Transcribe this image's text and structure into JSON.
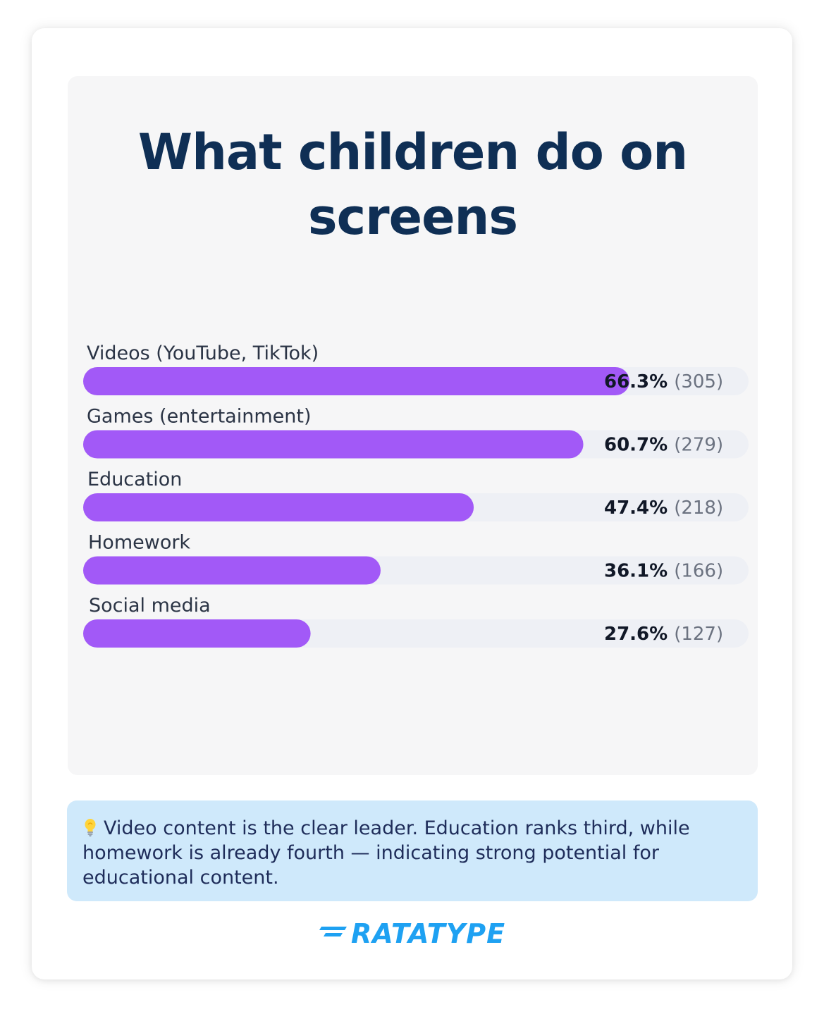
{
  "title": "What children do on screens",
  "chart_data": {
    "type": "bar",
    "orientation": "horizontal",
    "title": "What children do on screens",
    "categories": [
      "Videos (YouTube, TikTok)",
      "Games (entertainment)",
      "Education",
      "Homework",
      "Social media"
    ],
    "values": [
      66.3,
      60.7,
      47.4,
      36.1,
      27.6
    ],
    "counts": [
      305,
      279,
      218,
      166,
      127
    ],
    "value_labels": [
      "66.3%",
      "60.7%",
      "47.4%",
      "36.1%",
      "27.6%"
    ],
    "count_labels": [
      "(305)",
      "(279)",
      "(218)",
      "(166)",
      "(127)"
    ],
    "xlim": [
      0,
      100
    ],
    "grid": false,
    "bar_color": "#a259f7",
    "track_color": "#eef0f5"
  },
  "insight": {
    "icon": "lightbulb-icon",
    "text": "Video content is the clear leader. Education ranks third, while homework is already fourth — indicating strong potential for educational content."
  },
  "logo": {
    "text": "RATATYPE",
    "color": "#1ea1f2"
  },
  "colors": {
    "title": "#0f2f55",
    "panel": "#f6f6f7",
    "insight_bg": "#cfe9fb",
    "insight_text": "#1f2d5a"
  }
}
